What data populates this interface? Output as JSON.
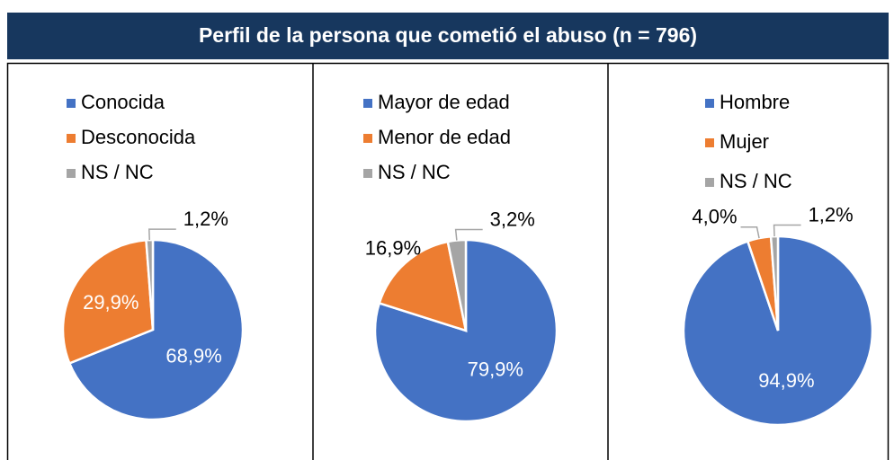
{
  "title": "Perfil de la persona que cometió el abuso (n = 796)",
  "chart_data": [
    {
      "type": "pie",
      "categories": [
        "Conocida",
        "Desconocida",
        "NS / NC"
      ],
      "values": [
        68.9,
        29.9,
        1.2
      ],
      "value_labels": [
        "68,9%",
        "29,9%",
        "1,2%"
      ],
      "colors": [
        "#4472c4",
        "#ed7d31",
        "#a5a5a5"
      ]
    },
    {
      "type": "pie",
      "categories": [
        "Mayor de edad",
        "Menor de edad",
        "NS / NC"
      ],
      "values": [
        79.9,
        16.9,
        3.2
      ],
      "value_labels": [
        "79,9%",
        "16,9%",
        "3,2%"
      ],
      "colors": [
        "#4472c4",
        "#ed7d31",
        "#a5a5a5"
      ]
    },
    {
      "type": "pie",
      "categories": [
        "Hombre",
        "Mujer",
        "NS / NC"
      ],
      "values": [
        94.9,
        4.0,
        1.2
      ],
      "value_labels": [
        "94,9%",
        "4,0%",
        "1,2%"
      ],
      "colors": [
        "#4472c4",
        "#ed7d31",
        "#a5a5a5"
      ]
    }
  ]
}
